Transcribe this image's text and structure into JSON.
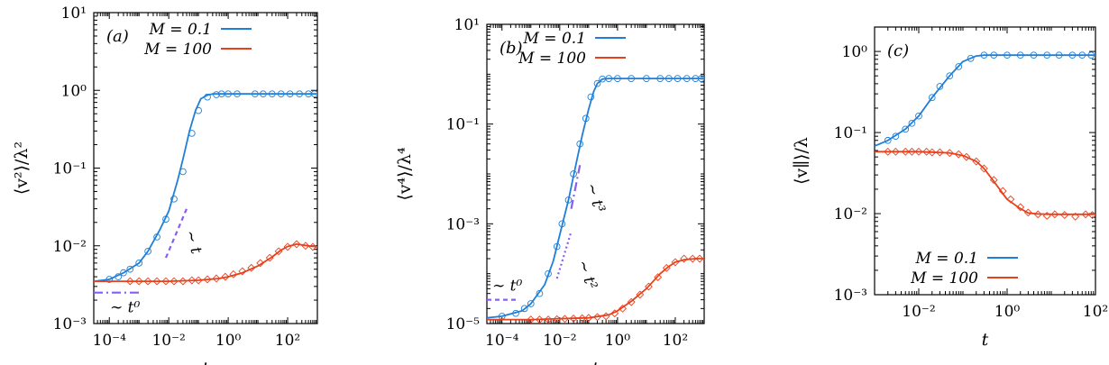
{
  "chart_data": [
    {
      "type": "line",
      "panel_label": "(a)",
      "xlabel": "t",
      "ylabel": "⟨v²⟩/λ²",
      "xscale": "log",
      "yscale": "log",
      "xlim": [
        3e-05,
        1000
      ],
      "ylim": [
        0.001,
        10
      ],
      "xticks": [
        0.0001,
        0.01,
        1,
        100
      ],
      "xtick_labels": [
        "10⁻⁴",
        "10⁻²",
        "10⁰",
        "10²"
      ],
      "yticks": [
        0.001,
        0.01,
        0.1,
        1,
        10
      ],
      "ytick_labels": [
        "10⁻³",
        "10⁻²",
        "10⁻¹",
        "10⁰",
        "10¹"
      ],
      "legend": "top-right",
      "series": [
        {
          "name": "M = 0.1",
          "color": "#1f7fd8",
          "marker": "circle",
          "x": [
            3e-05,
            0.0001,
            0.0003,
            0.001,
            0.002,
            0.005,
            0.01,
            0.02,
            0.03,
            0.05,
            0.08,
            0.12,
            0.2,
            0.3,
            0.5,
            1,
            3,
            10,
            100,
            1000
          ],
          "y": [
            0.0035,
            0.0037,
            0.0045,
            0.006,
            0.0085,
            0.016,
            0.028,
            0.07,
            0.13,
            0.3,
            0.55,
            0.78,
            0.87,
            0.9,
            0.9,
            0.9,
            0.9,
            0.9,
            0.9,
            0.9
          ],
          "marker_x": [
            0.0001,
            0.0002,
            0.0003,
            0.0005,
            0.001,
            0.002,
            0.004,
            0.008,
            0.015,
            0.03,
            0.06,
            0.1,
            0.2,
            0.4,
            0.6,
            1,
            2,
            8,
            15,
            30,
            60,
            120,
            250,
            500,
            800
          ],
          "marker_y": [
            0.0037,
            0.004,
            0.0045,
            0.005,
            0.006,
            0.0085,
            0.013,
            0.022,
            0.04,
            0.09,
            0.28,
            0.55,
            0.82,
            0.88,
            0.9,
            0.9,
            0.9,
            0.9,
            0.9,
            0.9,
            0.9,
            0.9,
            0.9,
            0.9,
            0.9
          ]
        },
        {
          "name": "M = 100",
          "color": "#e8401c",
          "marker": "diamond",
          "x": [
            3e-05,
            0.001,
            0.01,
            0.1,
            0.5,
            1,
            3,
            10,
            30,
            60,
            100,
            200,
            500,
            1000
          ],
          "y": [
            0.0035,
            0.0035,
            0.0035,
            0.0036,
            0.0038,
            0.004,
            0.0045,
            0.0055,
            0.0072,
            0.0088,
            0.0098,
            0.0105,
            0.01,
            0.0097
          ],
          "marker_x": [
            0.0005,
            0.001,
            0.002,
            0.004,
            0.008,
            0.015,
            0.03,
            0.06,
            0.1,
            0.2,
            0.4,
            0.8,
            1.5,
            3,
            6,
            12,
            25,
            50,
            100,
            200,
            400,
            700
          ],
          "marker_y": [
            0.0035,
            0.0035,
            0.0035,
            0.0035,
            0.0035,
            0.0035,
            0.0035,
            0.0036,
            0.0036,
            0.0037,
            0.0038,
            0.004,
            0.0043,
            0.0047,
            0.0052,
            0.006,
            0.007,
            0.0085,
            0.0097,
            0.0105,
            0.01,
            0.0097
          ]
        }
      ],
      "guides": [
        {
          "style": "dash-dot",
          "x": [
            3e-05,
            0.001
          ],
          "y": [
            0.0025,
            0.0025
          ],
          "label": "∼ t⁰"
        },
        {
          "style": "dashed",
          "x": [
            0.008,
            0.04
          ],
          "y": [
            0.007,
            0.03
          ],
          "label": "∼ t"
        }
      ]
    },
    {
      "type": "line",
      "panel_label": "(b)",
      "xlabel": "t",
      "ylabel": "⟨v⁴⟩/λ⁴",
      "xscale": "log",
      "yscale": "log",
      "xlim": [
        3e-05,
        1000
      ],
      "ylim": [
        1e-05,
        10
      ],
      "xticks": [
        0.0001,
        0.01,
        1,
        100
      ],
      "xtick_labels": [
        "10⁻⁴",
        "10⁻²",
        "10⁰",
        "10²"
      ],
      "yticks": [
        1e-05,
        0.001,
        0.1,
        10
      ],
      "ytick_labels": [
        "10⁻⁵",
        "10⁻³",
        "10⁻¹",
        "10¹"
      ],
      "legend": "top-right",
      "series": [
        {
          "name": "M = 0.1",
          "color": "#1f7fd8",
          "marker": "circle",
          "x": [
            3e-05,
            0.0001,
            0.0005,
            0.001,
            0.003,
            0.006,
            0.01,
            0.02,
            0.04,
            0.06,
            0.1,
            0.15,
            0.2,
            0.3,
            0.5,
            1,
            3,
            10,
            100,
            1000
          ],
          "y": [
            1.3e-05,
            1.4e-05,
            1.8e-05,
            2.5e-05,
            6e-05,
            0.00018,
            0.0006,
            0.003,
            0.02,
            0.06,
            0.2,
            0.45,
            0.65,
            0.8,
            0.82,
            0.82,
            0.82,
            0.82,
            0.82,
            0.82
          ],
          "marker_x": [
            0.0001,
            0.0003,
            0.0006,
            0.001,
            0.002,
            0.004,
            0.008,
            0.012,
            0.02,
            0.03,
            0.05,
            0.08,
            0.12,
            0.2,
            0.3,
            0.5,
            1,
            3,
            10,
            30,
            60,
            120,
            250,
            500,
            800
          ],
          "marker_y": [
            1.4e-05,
            1.6e-05,
            2e-05,
            2.5e-05,
            4e-05,
            0.0001,
            0.00035,
            0.001,
            0.003,
            0.01,
            0.04,
            0.13,
            0.35,
            0.65,
            0.8,
            0.82,
            0.82,
            0.82,
            0.82,
            0.82,
            0.82,
            0.82,
            0.82,
            0.82,
            0.82
          ]
        },
        {
          "name": "M = 100",
          "color": "#e8401c",
          "marker": "diamond",
          "x": [
            3e-05,
            0.001,
            0.01,
            0.1,
            0.5,
            1,
            3,
            10,
            30,
            60,
            100,
            200,
            500,
            1000
          ],
          "y": [
            1.2e-05,
            1.2e-05,
            1.25e-05,
            1.3e-05,
            1.5e-05,
            1.8e-05,
            2.8e-05,
            5e-05,
            0.0001,
            0.00014,
            0.00017,
            0.00019,
            0.0002,
            0.0002
          ],
          "marker_x": [
            0.001,
            0.002,
            0.004,
            0.008,
            0.015,
            0.03,
            0.06,
            0.1,
            0.2,
            0.4,
            0.8,
            1.5,
            3,
            6,
            12,
            25,
            50,
            100,
            200,
            400,
            700
          ],
          "marker_y": [
            1.2e-05,
            1.2e-05,
            1.2e-05,
            1.22e-05,
            1.24e-05,
            1.26e-05,
            1.28e-05,
            1.3e-05,
            1.35e-05,
            1.4e-05,
            1.6e-05,
            2e-05,
            2.7e-05,
            3.8e-05,
            5.5e-05,
            8.5e-05,
            0.00013,
            0.00017,
            0.0002,
            0.0002,
            0.0002
          ]
        }
      ],
      "guides": [
        {
          "style": "dashed",
          "x": [
            3e-05,
            0.0003
          ],
          "y": [
            3e-05,
            3e-05
          ],
          "label": "∼ t⁰"
        },
        {
          "style": "dotted",
          "x": [
            0.008,
            0.025
          ],
          "y": [
            8e-05,
            0.0007
          ],
          "label": "∼ t²"
        },
        {
          "style": "dash-dot",
          "x": [
            0.025,
            0.05
          ],
          "y": [
            0.002,
            0.015
          ],
          "label": "∼ t³"
        }
      ]
    },
    {
      "type": "line",
      "panel_label": "(c)",
      "xlabel": "t",
      "ylabel": "⟨v∥⟩/λ",
      "xscale": "log",
      "yscale": "log",
      "xlim": [
        0.001,
        100
      ],
      "ylim": [
        0.001,
        2
      ],
      "xticks": [
        0.01,
        1,
        100
      ],
      "xtick_labels": [
        "10⁻²",
        "10⁰",
        "10²"
      ],
      "yticks": [
        0.001,
        0.01,
        0.1,
        1
      ],
      "ytick_labels": [
        "10⁻³",
        "10⁻²",
        "10⁻¹",
        "10⁰"
      ],
      "legend": "bottom-right",
      "series": [
        {
          "name": "M = 0.1",
          "color": "#1f7fd8",
          "marker": "circle",
          "x": [
            0.001,
            0.002,
            0.005,
            0.01,
            0.02,
            0.05,
            0.1,
            0.2,
            0.3,
            0.5,
            1,
            3,
            10,
            30,
            100
          ],
          "y": [
            0.068,
            0.08,
            0.11,
            0.16,
            0.27,
            0.5,
            0.75,
            0.88,
            0.9,
            0.9,
            0.9,
            0.9,
            0.9,
            0.9,
            0.9
          ],
          "marker_x": [
            0.002,
            0.003,
            0.005,
            0.007,
            0.01,
            0.02,
            0.03,
            0.05,
            0.08,
            0.15,
            0.3,
            0.5,
            1,
            2,
            4,
            8,
            15,
            30,
            50,
            80
          ],
          "marker_y": [
            0.08,
            0.09,
            0.11,
            0.13,
            0.16,
            0.27,
            0.37,
            0.5,
            0.65,
            0.82,
            0.9,
            0.9,
            0.9,
            0.9,
            0.9,
            0.9,
            0.9,
            0.9,
            0.9,
            0.9
          ]
        },
        {
          "name": "M = 100",
          "color": "#e8401c",
          "marker": "diamond",
          "x": [
            0.001,
            0.01,
            0.05,
            0.1,
            0.2,
            0.3,
            0.5,
            1,
            2,
            3,
            5,
            10,
            30,
            100
          ],
          "y": [
            0.058,
            0.058,
            0.056,
            0.052,
            0.044,
            0.036,
            0.025,
            0.015,
            0.0115,
            0.0102,
            0.0099,
            0.0098,
            0.0098,
            0.0098
          ],
          "marker_x": [
            0.002,
            0.003,
            0.005,
            0.007,
            0.01,
            0.015,
            0.02,
            0.03,
            0.05,
            0.08,
            0.12,
            0.2,
            0.3,
            0.5,
            0.8,
            1.2,
            2,
            3,
            5,
            8,
            12,
            20,
            35,
            60,
            85
          ],
          "marker_y": [
            0.058,
            0.058,
            0.058,
            0.058,
            0.058,
            0.058,
            0.057,
            0.057,
            0.056,
            0.054,
            0.05,
            0.044,
            0.036,
            0.026,
            0.019,
            0.015,
            0.012,
            0.0103,
            0.0098,
            0.0094,
            0.0098,
            0.0096,
            0.0092,
            0.0098,
            0.0096
          ]
        }
      ],
      "guides": []
    }
  ]
}
